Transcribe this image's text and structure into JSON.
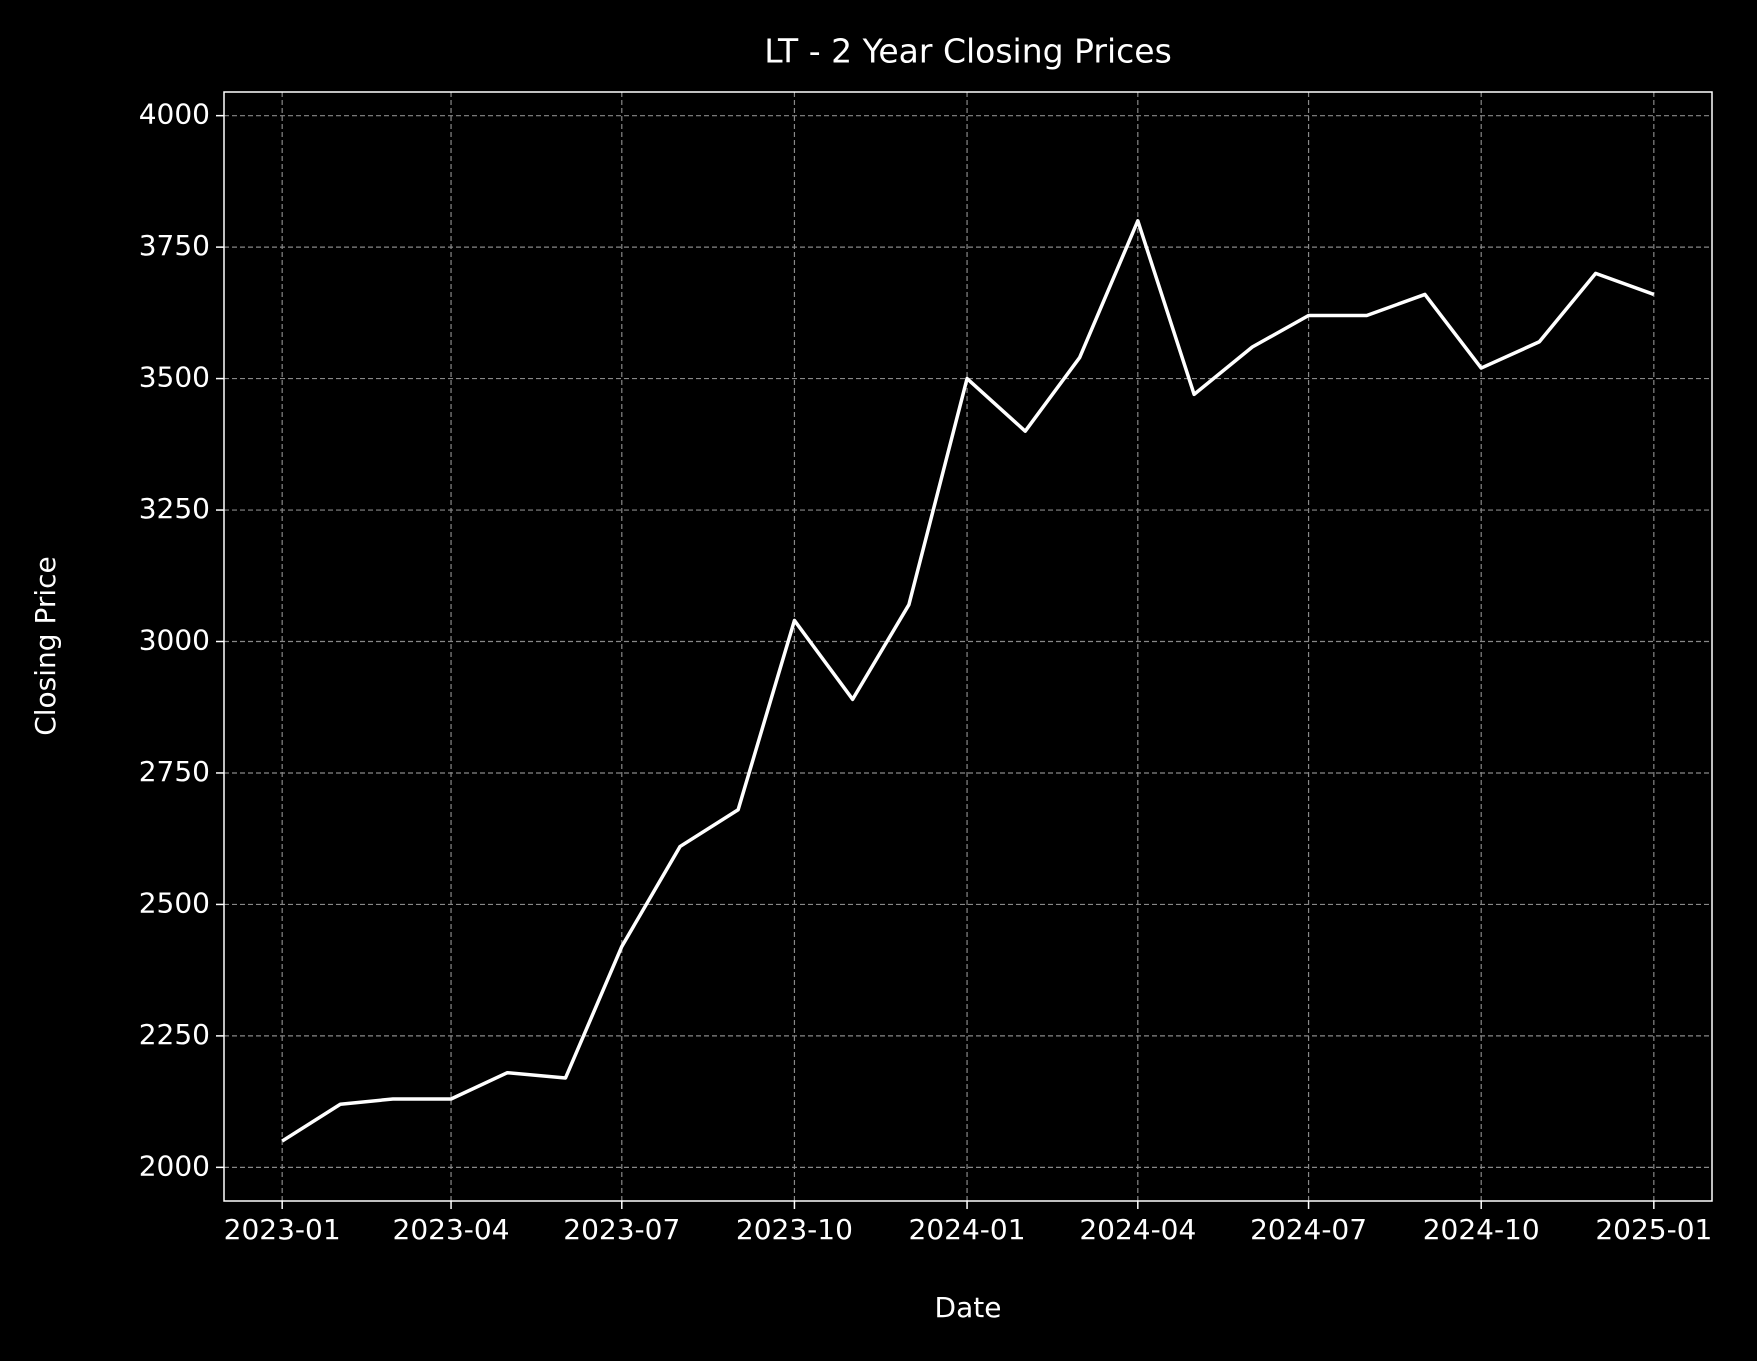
{
  "chart_data": {
    "type": "line",
    "title": "LT - 2 Year Closing Prices",
    "x_label": "Date",
    "y_label": "Closing Price",
    "x": [
      "2023-01",
      "2023-02",
      "2023-03",
      "2023-04",
      "2023-05",
      "2023-06",
      "2023-07",
      "2023-08",
      "2023-09",
      "2023-10",
      "2023-11",
      "2023-12",
      "2024-01",
      "2024-02",
      "2024-03",
      "2024-04",
      "2024-05",
      "2024-06",
      "2024-07",
      "2024-08",
      "2024-09",
      "2024-10",
      "2024-11",
      "2024-12",
      "2025-01"
    ],
    "series": [
      {
        "name": "Closing Price",
        "color": "#ffffff",
        "values": [
          2050,
          2120,
          2130,
          2130,
          2180,
          2170,
          2420,
          2610,
          2680,
          3040,
          2890,
          3070,
          3500,
          3400,
          3540,
          3800,
          3470,
          3560,
          3620,
          3620,
          3660,
          3520,
          3570,
          3700,
          3660
        ]
      }
    ],
    "xlim": [
      "2022-12",
      "2025-02"
    ],
    "xticks": [
      "2023-01",
      "2023-04",
      "2023-07",
      "2023-10",
      "2024-01",
      "2024-04",
      "2024-07",
      "2024-10",
      "2025-01"
    ],
    "ylim": [
      1936,
      4045
    ],
    "yticks": [
      2000,
      2250,
      2500,
      2750,
      3000,
      3250,
      3500,
      3750,
      4000
    ],
    "grid": true
  }
}
